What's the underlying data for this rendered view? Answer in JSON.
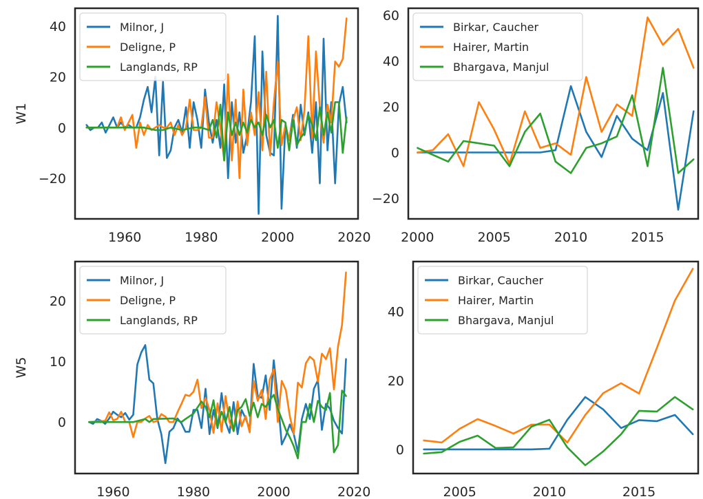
{
  "chart_data": [
    {
      "type": "line",
      "ylabel": "W1",
      "xlim": [
        1947,
        2021
      ],
      "ylim": [
        -36,
        47
      ],
      "xticks": [
        1960,
        1980,
        2000,
        2020
      ],
      "yticks": [
        -20,
        0,
        20,
        40
      ],
      "xtick_labels": [
        "1960",
        "1980",
        "2000",
        "2020"
      ],
      "ytick_labels": [
        "−20",
        "0",
        "20",
        "40"
      ],
      "legend_position": "upper-left",
      "series": [
        {
          "name": "Milnor, J",
          "color": "#1f77b4",
          "x": [
            1950,
            1951,
            1952,
            1953,
            1954,
            1955,
            1956,
            1957,
            1958,
            1959,
            1960,
            1961,
            1962,
            1963,
            1964,
            1965,
            1966,
            1967,
            1968,
            1969,
            1970,
            1971,
            1972,
            1973,
            1974,
            1975,
            1976,
            1977,
            1978,
            1979,
            1980,
            1981,
            1982,
            1983,
            1984,
            1985,
            1986,
            1987,
            1988,
            1989,
            1990,
            1991,
            1992,
            1993,
            1994,
            1995,
            1996,
            1997,
            1998,
            1999,
            2000,
            2001,
            2002,
            2003,
            2004,
            2005,
            2006,
            2007,
            2008,
            2009,
            2010,
            2011,
            2012,
            2013,
            2014,
            2015,
            2016,
            2017,
            2018
          ],
          "y": [
            1,
            -1,
            0,
            0,
            2,
            -2,
            1,
            4,
            0,
            2,
            0,
            1,
            0,
            0,
            4,
            11,
            16,
            6,
            20,
            -11,
            18,
            -12,
            -9,
            0,
            3,
            -2,
            8,
            -8,
            10,
            3,
            -8,
            15,
            2,
            -6,
            3,
            -8,
            17,
            -20,
            10,
            -6,
            6,
            -10,
            -3,
            10,
            36,
            -34,
            30,
            -3,
            -10,
            -11,
            44,
            -32,
            1,
            -5,
            5,
            -8,
            9,
            -3,
            6,
            -10,
            10,
            -22,
            35,
            -9,
            10,
            -22,
            9,
            16,
            2
          ]
        },
        {
          "name": "Deligne, P",
          "color": "#ff7f0e",
          "x": [
            1950,
            1952,
            1954,
            1956,
            1958,
            1959,
            1960,
            1961,
            1962,
            1963,
            1964,
            1965,
            1966,
            1967,
            1968,
            1969,
            1970,
            1971,
            1972,
            1973,
            1974,
            1975,
            1976,
            1977,
            1978,
            1979,
            1980,
            1981,
            1982,
            1983,
            1984,
            1985,
            1986,
            1987,
            1988,
            1989,
            1990,
            1991,
            1992,
            1993,
            1994,
            1995,
            1996,
            1997,
            1998,
            1999,
            2000,
            2001,
            2002,
            2003,
            2004,
            2005,
            2006,
            2007,
            2008,
            2009,
            2010,
            2011,
            2012,
            2013,
            2014,
            2015,
            2016,
            2017,
            2018
          ],
          "y": [
            0,
            0,
            0,
            0,
            0,
            4,
            -1,
            2,
            5,
            -8,
            2,
            -3,
            1,
            -1,
            0,
            1,
            0,
            0,
            2,
            -3,
            1,
            -3,
            0,
            11,
            -1,
            -1,
            0,
            12,
            -4,
            -4,
            10,
            0,
            -13,
            21,
            -13,
            11,
            -20,
            15,
            -7,
            6,
            -3,
            14,
            -9,
            22,
            -11,
            10,
            26,
            -7,
            1,
            -5,
            3,
            8,
            -5,
            7,
            36,
            -4,
            30,
            8,
            -6,
            9,
            2,
            26,
            24,
            27,
            43
          ]
        },
        {
          "name": "Langlands, RP",
          "color": "#2ca02c",
          "x": [
            1950,
            1955,
            1960,
            1965,
            1968,
            1970,
            1972,
            1975,
            1978,
            1980,
            1982,
            1983,
            1984,
            1985,
            1986,
            1987,
            1988,
            1989,
            1990,
            1991,
            1992,
            1993,
            1994,
            1995,
            1996,
            1997,
            1998,
            1999,
            2000,
            2001,
            2002,
            2003,
            2004,
            2005,
            2006,
            2007,
            2008,
            2009,
            2010,
            2011,
            2012,
            2013,
            2014,
            2015,
            2016,
            2017,
            2018
          ],
          "y": [
            0,
            0,
            0,
            0,
            -1,
            -1,
            0,
            -1,
            0,
            0,
            -1,
            3,
            -4,
            9,
            -13,
            6,
            -3,
            2,
            -3,
            2,
            -2,
            3,
            0,
            2,
            -3,
            5,
            0,
            3,
            -8,
            3,
            2,
            -9,
            3,
            -7,
            -4,
            -2,
            5,
            1,
            -5,
            8,
            -3,
            6,
            -2,
            10,
            10,
            -10,
            4
          ]
        }
      ]
    },
    {
      "type": "line",
      "ylabel": "",
      "xlim": [
        1999.4,
        2018.3
      ],
      "ylim": [
        -29,
        63
      ],
      "xticks": [
        2000,
        2005,
        2010,
        2015
      ],
      "yticks": [
        -20,
        0,
        20,
        40,
        60
      ],
      "xtick_labels": [
        "2000",
        "2005",
        "2010",
        "2015"
      ],
      "ytick_labels": [
        "−20",
        "0",
        "20",
        "40",
        "60"
      ],
      "legend_position": "upper-left",
      "series": [
        {
          "name": "Birkar, Caucher",
          "color": "#1f77b4",
          "x": [
            2000,
            2001,
            2002,
            2003,
            2004,
            2005,
            2006,
            2007,
            2008,
            2009,
            2010,
            2011,
            2012,
            2013,
            2014,
            2015,
            2016,
            2017,
            2018
          ],
          "y": [
            0,
            0,
            0,
            0,
            0,
            0,
            0,
            0,
            0,
            1,
            29,
            9,
            -2,
            16,
            6,
            1,
            26,
            -25,
            18
          ]
        },
        {
          "name": "Hairer, Martin",
          "color": "#ff7f0e",
          "x": [
            2000,
            2001,
            2002,
            2003,
            2004,
            2005,
            2006,
            2007,
            2008,
            2009,
            2010,
            2011,
            2012,
            2013,
            2014,
            2015,
            2016,
            2017,
            2018
          ],
          "y": [
            0,
            1,
            8,
            -6,
            22,
            10,
            -5,
            18,
            2,
            4,
            -1,
            33,
            9,
            21,
            16,
            59,
            47,
            54,
            37
          ]
        },
        {
          "name": "Bhargava, Manjul",
          "color": "#2ca02c",
          "x": [
            2000,
            2001,
            2002,
            2003,
            2004,
            2005,
            2006,
            2007,
            2008,
            2009,
            2010,
            2011,
            2012,
            2013,
            2014,
            2015,
            2016,
            2017,
            2018
          ],
          "y": [
            2,
            -1,
            -4,
            5,
            4,
            3,
            -6,
            9,
            17,
            -4,
            -9,
            2,
            4,
            7,
            25,
            -6,
            37,
            -9,
            -3
          ]
        }
      ]
    },
    {
      "type": "line",
      "ylabel": "W5",
      "xlim": [
        1950.5,
        2021
      ],
      "ylim": [
        -8.5,
        26.5
      ],
      "xticks": [
        1960,
        1980,
        2000,
        2020
      ],
      "yticks": [
        0,
        10,
        20
      ],
      "xtick_labels": [
        "1960",
        "1980",
        "2000",
        "2020"
      ],
      "ytick_labels": [
        "0",
        "10",
        "20"
      ],
      "legend_position": "upper-left",
      "series": [
        {
          "name": "Milnor, J",
          "color": "#1f77b4",
          "x": [
            1954,
            1955,
            1956,
            1957,
            1958,
            1959,
            1960,
            1961,
            1962,
            1963,
            1964,
            1965,
            1966,
            1967,
            1968,
            1969,
            1970,
            1971,
            1972,
            1973,
            1974,
            1975,
            1976,
            1977,
            1978,
            1979,
            1980,
            1981,
            1982,
            1983,
            1984,
            1985,
            1986,
            1987,
            1988,
            1989,
            1990,
            1991,
            1992,
            1993,
            1994,
            1995,
            1996,
            1997,
            1998,
            1999,
            2000,
            2001,
            2002,
            2003,
            2004,
            2005,
            2006,
            2007,
            2008,
            2009,
            2010,
            2011,
            2012,
            2013,
            2014,
            2015,
            2016,
            2017,
            2018
          ],
          "y": [
            0,
            -0.3,
            0.5,
            0.2,
            -0.3,
            0.6,
            1.7,
            1.2,
            0.8,
            1.5,
            0.4,
            1.2,
            9.5,
            11.5,
            12.7,
            7,
            6.4,
            0.5,
            -2,
            -6.8,
            -1.6,
            -1,
            0.6,
            -0.2,
            -1.6,
            -1.6,
            2,
            2,
            -1,
            5.5,
            -2,
            2,
            -1,
            4.8,
            0,
            -1.8,
            3.3,
            -2,
            2,
            0.6,
            -1.2,
            9.6,
            4.3,
            4,
            7.7,
            2,
            10.2,
            4,
            -3.7,
            -2.3,
            -0.4,
            -2,
            -5,
            0.5,
            3,
            0.5,
            5.5,
            6.9,
            -1.3,
            3,
            2.2,
            0.2,
            -1,
            -1.9,
            10.4
          ]
        },
        {
          "name": "Deligne, P",
          "color": "#ff7f0e",
          "x": [
            1954,
            1958,
            1959,
            1960,
            1961,
            1962,
            1963,
            1964,
            1965,
            1966,
            1967,
            1968,
            1969,
            1970,
            1971,
            1972,
            1973,
            1974,
            1975,
            1976,
            1977,
            1978,
            1979,
            1980,
            1981,
            1982,
            1983,
            1984,
            1985,
            1986,
            1987,
            1988,
            1989,
            1990,
            1991,
            1992,
            1993,
            1994,
            1995,
            1996,
            1997,
            1998,
            1999,
            2000,
            2001,
            2002,
            2003,
            2004,
            2005,
            2006,
            2007,
            2008,
            2009,
            2010,
            2011,
            2012,
            2013,
            2014,
            2015,
            2016,
            2017,
            2018
          ],
          "y": [
            0,
            0.2,
            1.6,
            0.3,
            0.5,
            1.7,
            0,
            0,
            -2.5,
            0,
            0,
            0.6,
            1,
            0,
            0.2,
            1.3,
            0.9,
            0,
            0,
            1.6,
            3,
            4.5,
            4.3,
            5,
            7,
            2.3,
            4,
            2,
            -1.8,
            3.1,
            -1.6,
            4.3,
            0,
            -1.5,
            3.4,
            -0.7,
            1,
            -1.7,
            6.8,
            3.5,
            5.3,
            0.5,
            7,
            8.7,
            0,
            6.8,
            5.3,
            1,
            -2,
            6.5,
            5.7,
            9.7,
            10.8,
            10.2,
            6.7,
            11.3,
            10.4,
            12.2,
            5.4,
            12.5,
            16,
            24.7
          ]
        },
        {
          "name": "Langlands, RP",
          "color": "#2ca02c",
          "x": [
            1954,
            1960,
            1965,
            1968,
            1969,
            1970,
            1975,
            1977,
            1978,
            1980,
            1982,
            1983,
            1984,
            1985,
            1986,
            1987,
            1988,
            1989,
            1990,
            1991,
            1992,
            1993,
            1994,
            1995,
            1996,
            1997,
            1998,
            1999,
            2000,
            2001,
            2002,
            2003,
            2004,
            2005,
            2006,
            2007,
            2008,
            2009,
            2010,
            2011,
            2012,
            2013,
            2014,
            2015,
            2016,
            2017,
            2018
          ],
          "y": [
            0,
            0,
            0,
            0.5,
            0,
            0.5,
            0.6,
            0,
            0.5,
            1.4,
            3.4,
            2.5,
            0.8,
            3.6,
            -0.8,
            1.7,
            0,
            2.5,
            -1.5,
            2,
            2.5,
            3.8,
            1,
            3.2,
            0.8,
            3,
            2.5,
            3.6,
            4.5,
            2.2,
            0.5,
            -1.3,
            -2.5,
            -4,
            -6,
            0,
            0,
            3,
            0,
            3.5,
            2.5,
            2,
            4.8,
            -5,
            -3.8,
            5.2,
            4.3
          ]
        }
      ]
    },
    {
      "type": "line",
      "ylabel": "",
      "xlim": [
        2002.4,
        2018.3
      ],
      "ylim": [
        -7,
        54.5
      ],
      "xticks": [
        2005,
        2010,
        2015
      ],
      "yticks": [
        0,
        20,
        40
      ],
      "xtick_labels": [
        "2005",
        "2010",
        "2015"
      ],
      "ytick_labels": [
        "0",
        "20",
        "40"
      ],
      "legend_position": "upper-left",
      "series": [
        {
          "name": "Birkar, Caucher",
          "color": "#1f77b4",
          "x": [
            2003,
            2004,
            2005,
            2006,
            2007,
            2008,
            2009,
            2010,
            2011,
            2012,
            2013,
            2014,
            2015,
            2016,
            2017,
            2018
          ],
          "y": [
            0,
            0,
            0,
            0,
            0,
            0,
            0,
            0.2,
            8.6,
            15.2,
            11.6,
            6.2,
            8.5,
            8.2,
            10,
            4.4
          ]
        },
        {
          "name": "Hairer, Martin",
          "color": "#ff7f0e",
          "x": [
            2003,
            2004,
            2005,
            2006,
            2007,
            2008,
            2009,
            2010,
            2011,
            2012,
            2013,
            2014,
            2015,
            2016,
            2017,
            2018
          ],
          "y": [
            2.6,
            2,
            6,
            8.8,
            6.8,
            4.6,
            7.2,
            7.2,
            2,
            10,
            16.3,
            19.2,
            16.2,
            29.5,
            43.2,
            52.4
          ]
        },
        {
          "name": "Bhargava, Manjul",
          "color": "#2ca02c",
          "x": [
            2003,
            2004,
            2005,
            2006,
            2007,
            2008,
            2009,
            2010,
            2011,
            2012,
            2013,
            2014,
            2015,
            2016,
            2017,
            2018
          ],
          "y": [
            -1.2,
            -0.8,
            2.2,
            4,
            0.4,
            0.6,
            6.6,
            8.6,
            0.6,
            -4.6,
            -0.6,
            4.4,
            11.2,
            11,
            15.2,
            11.6
          ]
        }
      ]
    }
  ]
}
